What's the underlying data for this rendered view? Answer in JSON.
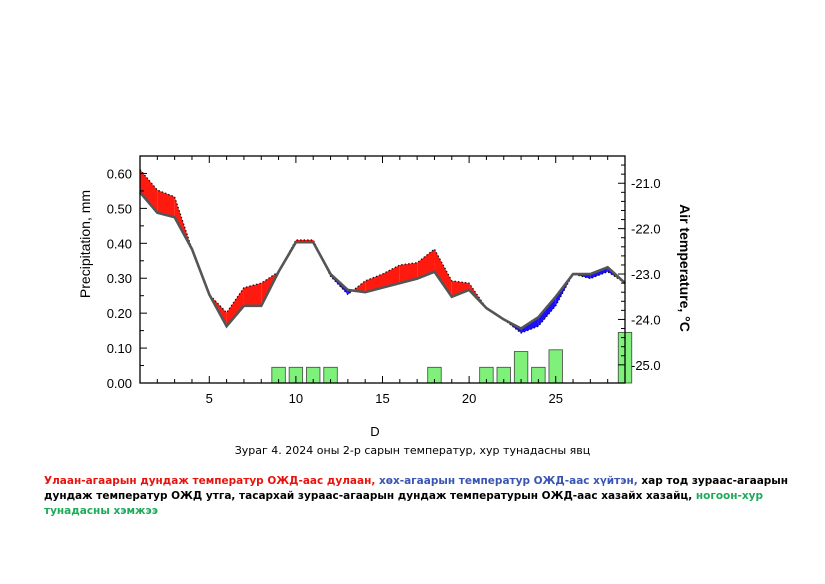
{
  "chart_data": {
    "type": "bar+area",
    "x": [
      1,
      2,
      3,
      4,
      5,
      6,
      7,
      8,
      9,
      10,
      11,
      12,
      13,
      14,
      15,
      16,
      17,
      18,
      19,
      20,
      21,
      22,
      23,
      24,
      25,
      26,
      27,
      28,
      29
    ],
    "xticks": [
      5,
      10,
      15,
      20,
      25
    ],
    "xlim": [
      1,
      29
    ],
    "xlabel": "D",
    "left_axis": {
      "label": "Precipitation, mm",
      "ylim": [
        0,
        0.65
      ],
      "ticks": [
        "0.00",
        "0.10",
        "0.20",
        "0.30",
        "0.40",
        "0.50",
        "0.60"
      ]
    },
    "right_axis": {
      "label": "Air temperature, °C",
      "ylim": [
        -25.4,
        -20.4
      ],
      "ticks": [
        "-25.0",
        "-24.0",
        "-23.0",
        "-22.0",
        "-21.0"
      ]
    },
    "series": [
      {
        "name": "Precipitation",
        "type": "bar",
        "color": "#7ff07a",
        "values": [
          0,
          0,
          0,
          0,
          0,
          0,
          0,
          0,
          0.045,
          0.045,
          0.045,
          0.045,
          0,
          0,
          0,
          0,
          0,
          0.045,
          0,
          0,
          0.045,
          0.045,
          0.09,
          0.045,
          0.095,
          0,
          0,
          0,
          0.145
        ]
      },
      {
        "name": "Air temperature",
        "type": "line",
        "values": [
          -20.7,
          -21.15,
          -21.3,
          -22.45,
          -23.45,
          -23.85,
          -23.3,
          -23.2,
          -22.95,
          -22.25,
          -22.25,
          -23.05,
          -23.45,
          -23.15,
          -23.0,
          -22.8,
          -22.75,
          -22.45,
          -23.15,
          -23.2,
          -23.75,
          -24.0,
          -24.3,
          -24.15,
          -23.7,
          -23.0,
          -23.1,
          -22.95,
          -23.2
        ]
      },
      {
        "name": "Multi-year mean temperature",
        "type": "line",
        "color": "#555555",
        "values": [
          -21.2,
          -21.65,
          -21.75,
          -22.45,
          -23.45,
          -24.15,
          -23.7,
          -23.7,
          -22.95,
          -22.3,
          -22.3,
          -23.0,
          -23.35,
          -23.4,
          -23.3,
          -23.2,
          -23.1,
          -22.95,
          -23.5,
          -23.35,
          -23.75,
          -24.0,
          -24.2,
          -23.95,
          -23.5,
          -23.0,
          -23.0,
          -22.85,
          -23.2
        ]
      }
    ],
    "fill_colors": {
      "warm": "#ff1a10",
      "cold": "#1a10ff"
    }
  },
  "caption": "Зураг 4. 2024 оны 2-р сарын температур, хур тунадасны явц",
  "legend": {
    "red": "Улаан-агаарын дундаж температур ОЖД-аас дулаан,",
    "blue": "хөх-агаарын температур ОЖД-аас хүйтэн,",
    "black": "хар тод зураас-агаарын дундаж температур ОЖД утга, тасархай зураас-агаарын дундаж температурын ОЖД-аас хазайх хазайц,",
    "green": "ногоон-хур тунадасны хэмжээ"
  }
}
